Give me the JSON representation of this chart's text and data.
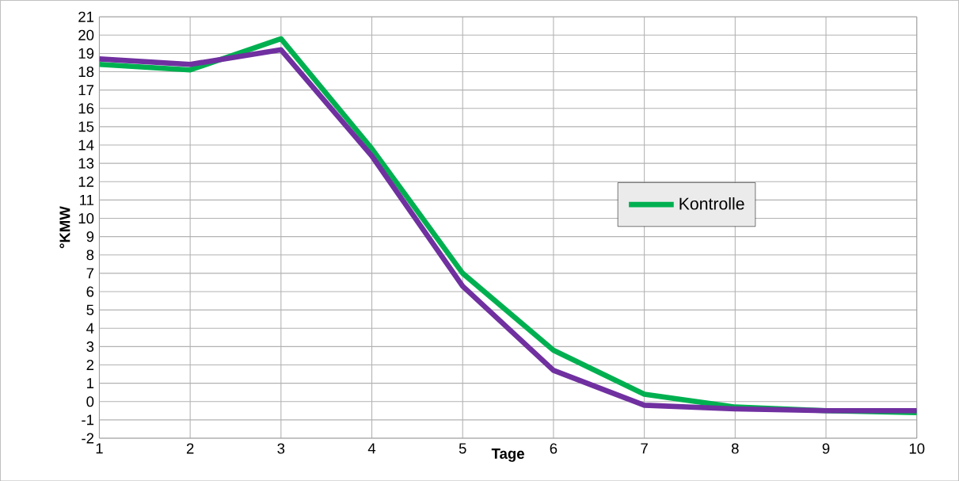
{
  "chart_data": {
    "type": "line",
    "xlabel": "Tage",
    "ylabel": "°KMW",
    "x": [
      1,
      2,
      3,
      4,
      5,
      6,
      7,
      8,
      9,
      10
    ],
    "series": [
      {
        "name": "Kontrolle",
        "color": "#00b050",
        "values": [
          18.4,
          18.1,
          19.8,
          13.8,
          7.0,
          2.8,
          0.4,
          -0.3,
          -0.5,
          -0.6
        ]
      },
      {
        "color": "#7030a0",
        "values": [
          18.7,
          18.4,
          19.2,
          13.4,
          6.3,
          1.7,
          -0.2,
          -0.4,
          -0.5,
          -0.5
        ]
      }
    ],
    "xlim": [
      1,
      10
    ],
    "xticks": [
      1,
      2,
      3,
      4,
      5,
      6,
      7,
      8,
      9,
      10
    ],
    "ylim": [
      -2,
      21
    ],
    "yticks": [
      -2,
      -1,
      0,
      1,
      2,
      3,
      4,
      5,
      6,
      7,
      8,
      9,
      10,
      11,
      12,
      13,
      14,
      15,
      16,
      17,
      18,
      19,
      20,
      21
    ],
    "grid": true,
    "legend": "right",
    "marker": "none",
    "line_style": "solid"
  }
}
